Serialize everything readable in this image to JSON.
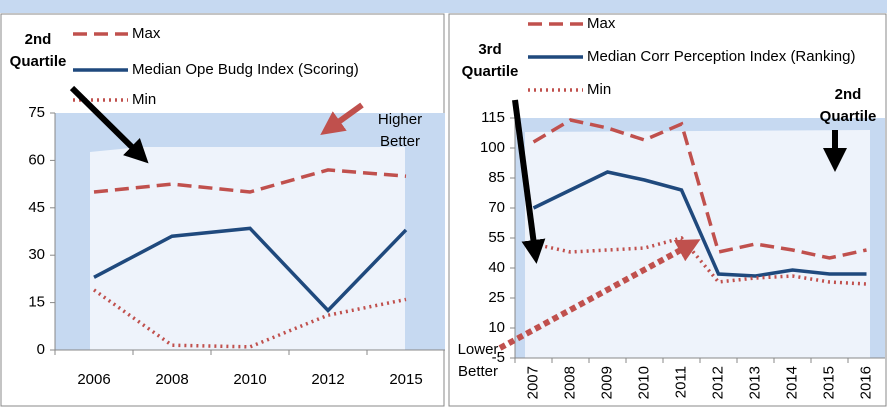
{
  "chart_data": [
    {
      "type": "line",
      "categories": [
        "2006",
        "2008",
        "2010",
        "2012",
        "2015"
      ],
      "series": [
        {
          "name": "Max",
          "color": "#c0504d",
          "style": "dashed",
          "values": [
            50,
            52.5,
            50,
            57,
            55
          ]
        },
        {
          "name": "Median Ope Budg Index (Scoring)",
          "color": "#1f497d",
          "style": "solid",
          "values": [
            23,
            36,
            38.5,
            12.5,
            38
          ]
        },
        {
          "name": "Min",
          "color": "#c0504d",
          "style": "dotted",
          "values": [
            19,
            1.5,
            1,
            11,
            16
          ]
        }
      ],
      "ylim": [
        0,
        75
      ],
      "yticks": [
        0,
        15,
        30,
        45,
        60,
        75
      ],
      "annotations": [
        "2nd Quartile",
        "Higher Better"
      ]
    },
    {
      "type": "line",
      "categories": [
        "2007",
        "2008",
        "2009",
        "2010",
        "2011",
        "2012",
        "2013",
        "2014",
        "2015",
        "2016"
      ],
      "series": [
        {
          "name": "Max",
          "color": "#c0504d",
          "style": "dashed",
          "values": [
            103,
            114,
            110,
            104,
            112,
            48,
            52,
            49,
            45,
            49
          ]
        },
        {
          "name": "Median Corr Perception Index (Ranking)",
          "color": "#1f497d",
          "style": "solid",
          "values": [
            70,
            79,
            88,
            84,
            79,
            37,
            36,
            39,
            37,
            37
          ]
        },
        {
          "name": "Min",
          "color": "#c0504d",
          "style": "dotted",
          "values": [
            52,
            48,
            49,
            50,
            55,
            33,
            35,
            36,
            33,
            32
          ]
        }
      ],
      "ylim": [
        -5,
        115
      ],
      "yticks": [
        -5,
        10,
        25,
        40,
        55,
        70,
        85,
        100,
        115
      ],
      "annotations": [
        "3rd Quartile",
        "2nd Quartile",
        "Lower Better"
      ]
    }
  ]
}
